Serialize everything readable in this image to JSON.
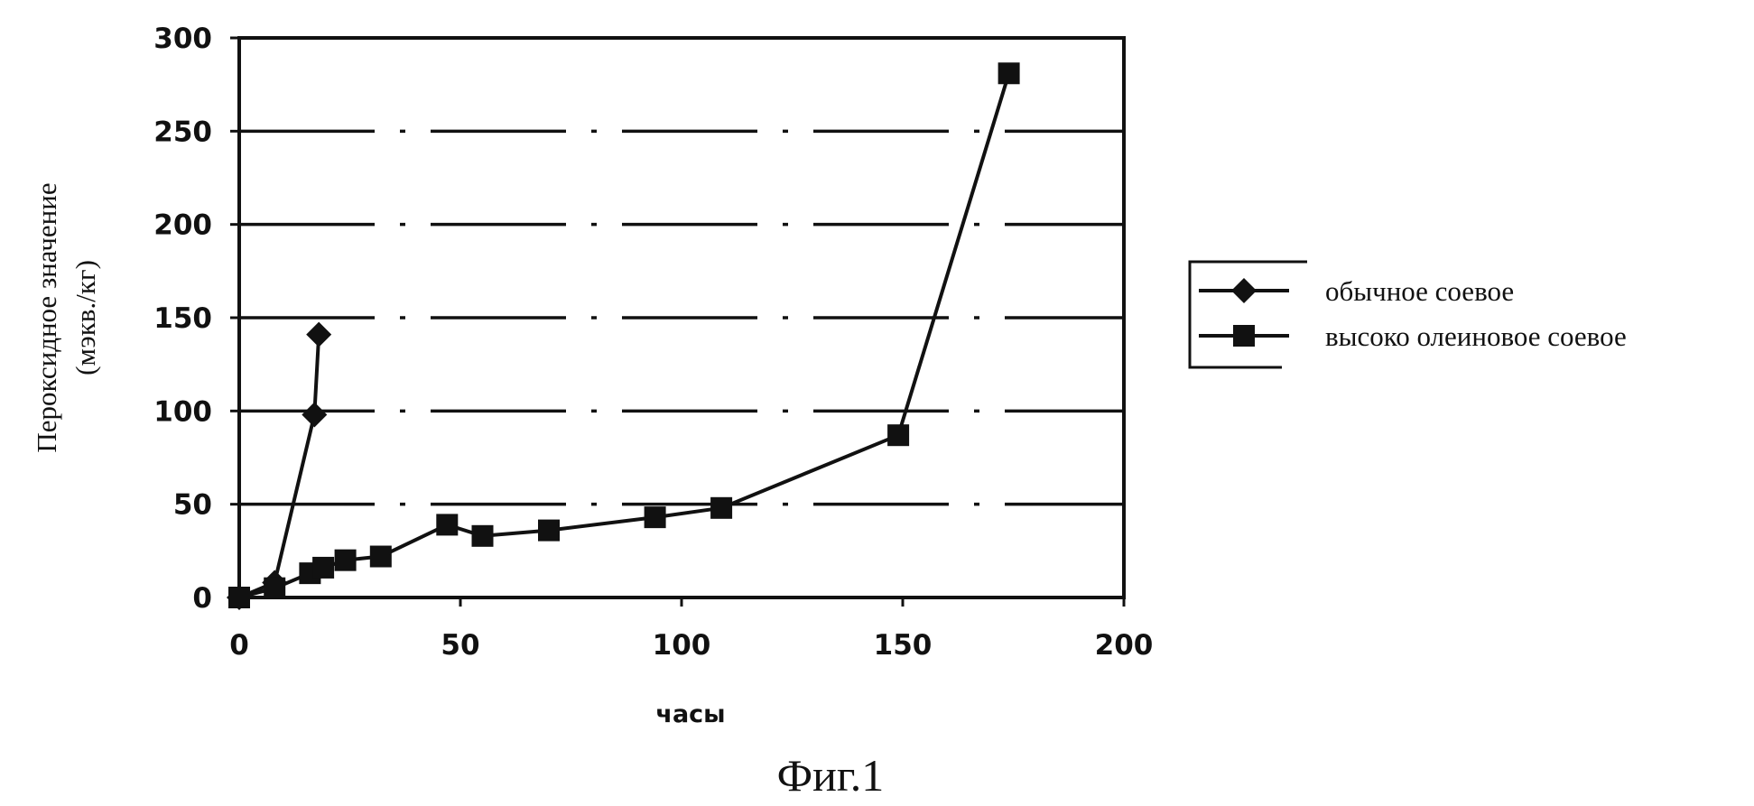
{
  "chart_data": {
    "type": "line",
    "title": "",
    "xlabel": "часы",
    "ylabel": "Пероксидное значение",
    "ylabel_unit": "(мэкв./кг)",
    "xlim": [
      0,
      200
    ],
    "ylim": [
      0,
      300
    ],
    "x_ticks": [
      "0",
      "50",
      "100",
      "150",
      "200"
    ],
    "y_ticks": [
      "0",
      "50",
      "100",
      "150",
      "200",
      "250",
      "300"
    ],
    "grid": true,
    "legend_position": "right",
    "series": [
      {
        "name": "обычное соевое",
        "marker": "diamond",
        "color": "#111111",
        "points": [
          {
            "x": 0,
            "y": 0
          },
          {
            "x": 8,
            "y": 8
          },
          {
            "x": 17,
            "y": 98
          },
          {
            "x": 18,
            "y": 141
          }
        ]
      },
      {
        "name": "высоко олеиновое соевое",
        "marker": "square",
        "color": "#111111",
        "points": [
          {
            "x": 0,
            "y": 0
          },
          {
            "x": 8,
            "y": 5
          },
          {
            "x": 16,
            "y": 13
          },
          {
            "x": 19,
            "y": 16
          },
          {
            "x": 24,
            "y": 20
          },
          {
            "x": 32,
            "y": 22
          },
          {
            "x": 47,
            "y": 39
          },
          {
            "x": 55,
            "y": 33
          },
          {
            "x": 70,
            "y": 36
          },
          {
            "x": 94,
            "y": 43
          },
          {
            "x": 109,
            "y": 48
          },
          {
            "x": 149,
            "y": 87
          },
          {
            "x": 174,
            "y": 281
          }
        ]
      }
    ]
  },
  "caption": "Фиг.1"
}
